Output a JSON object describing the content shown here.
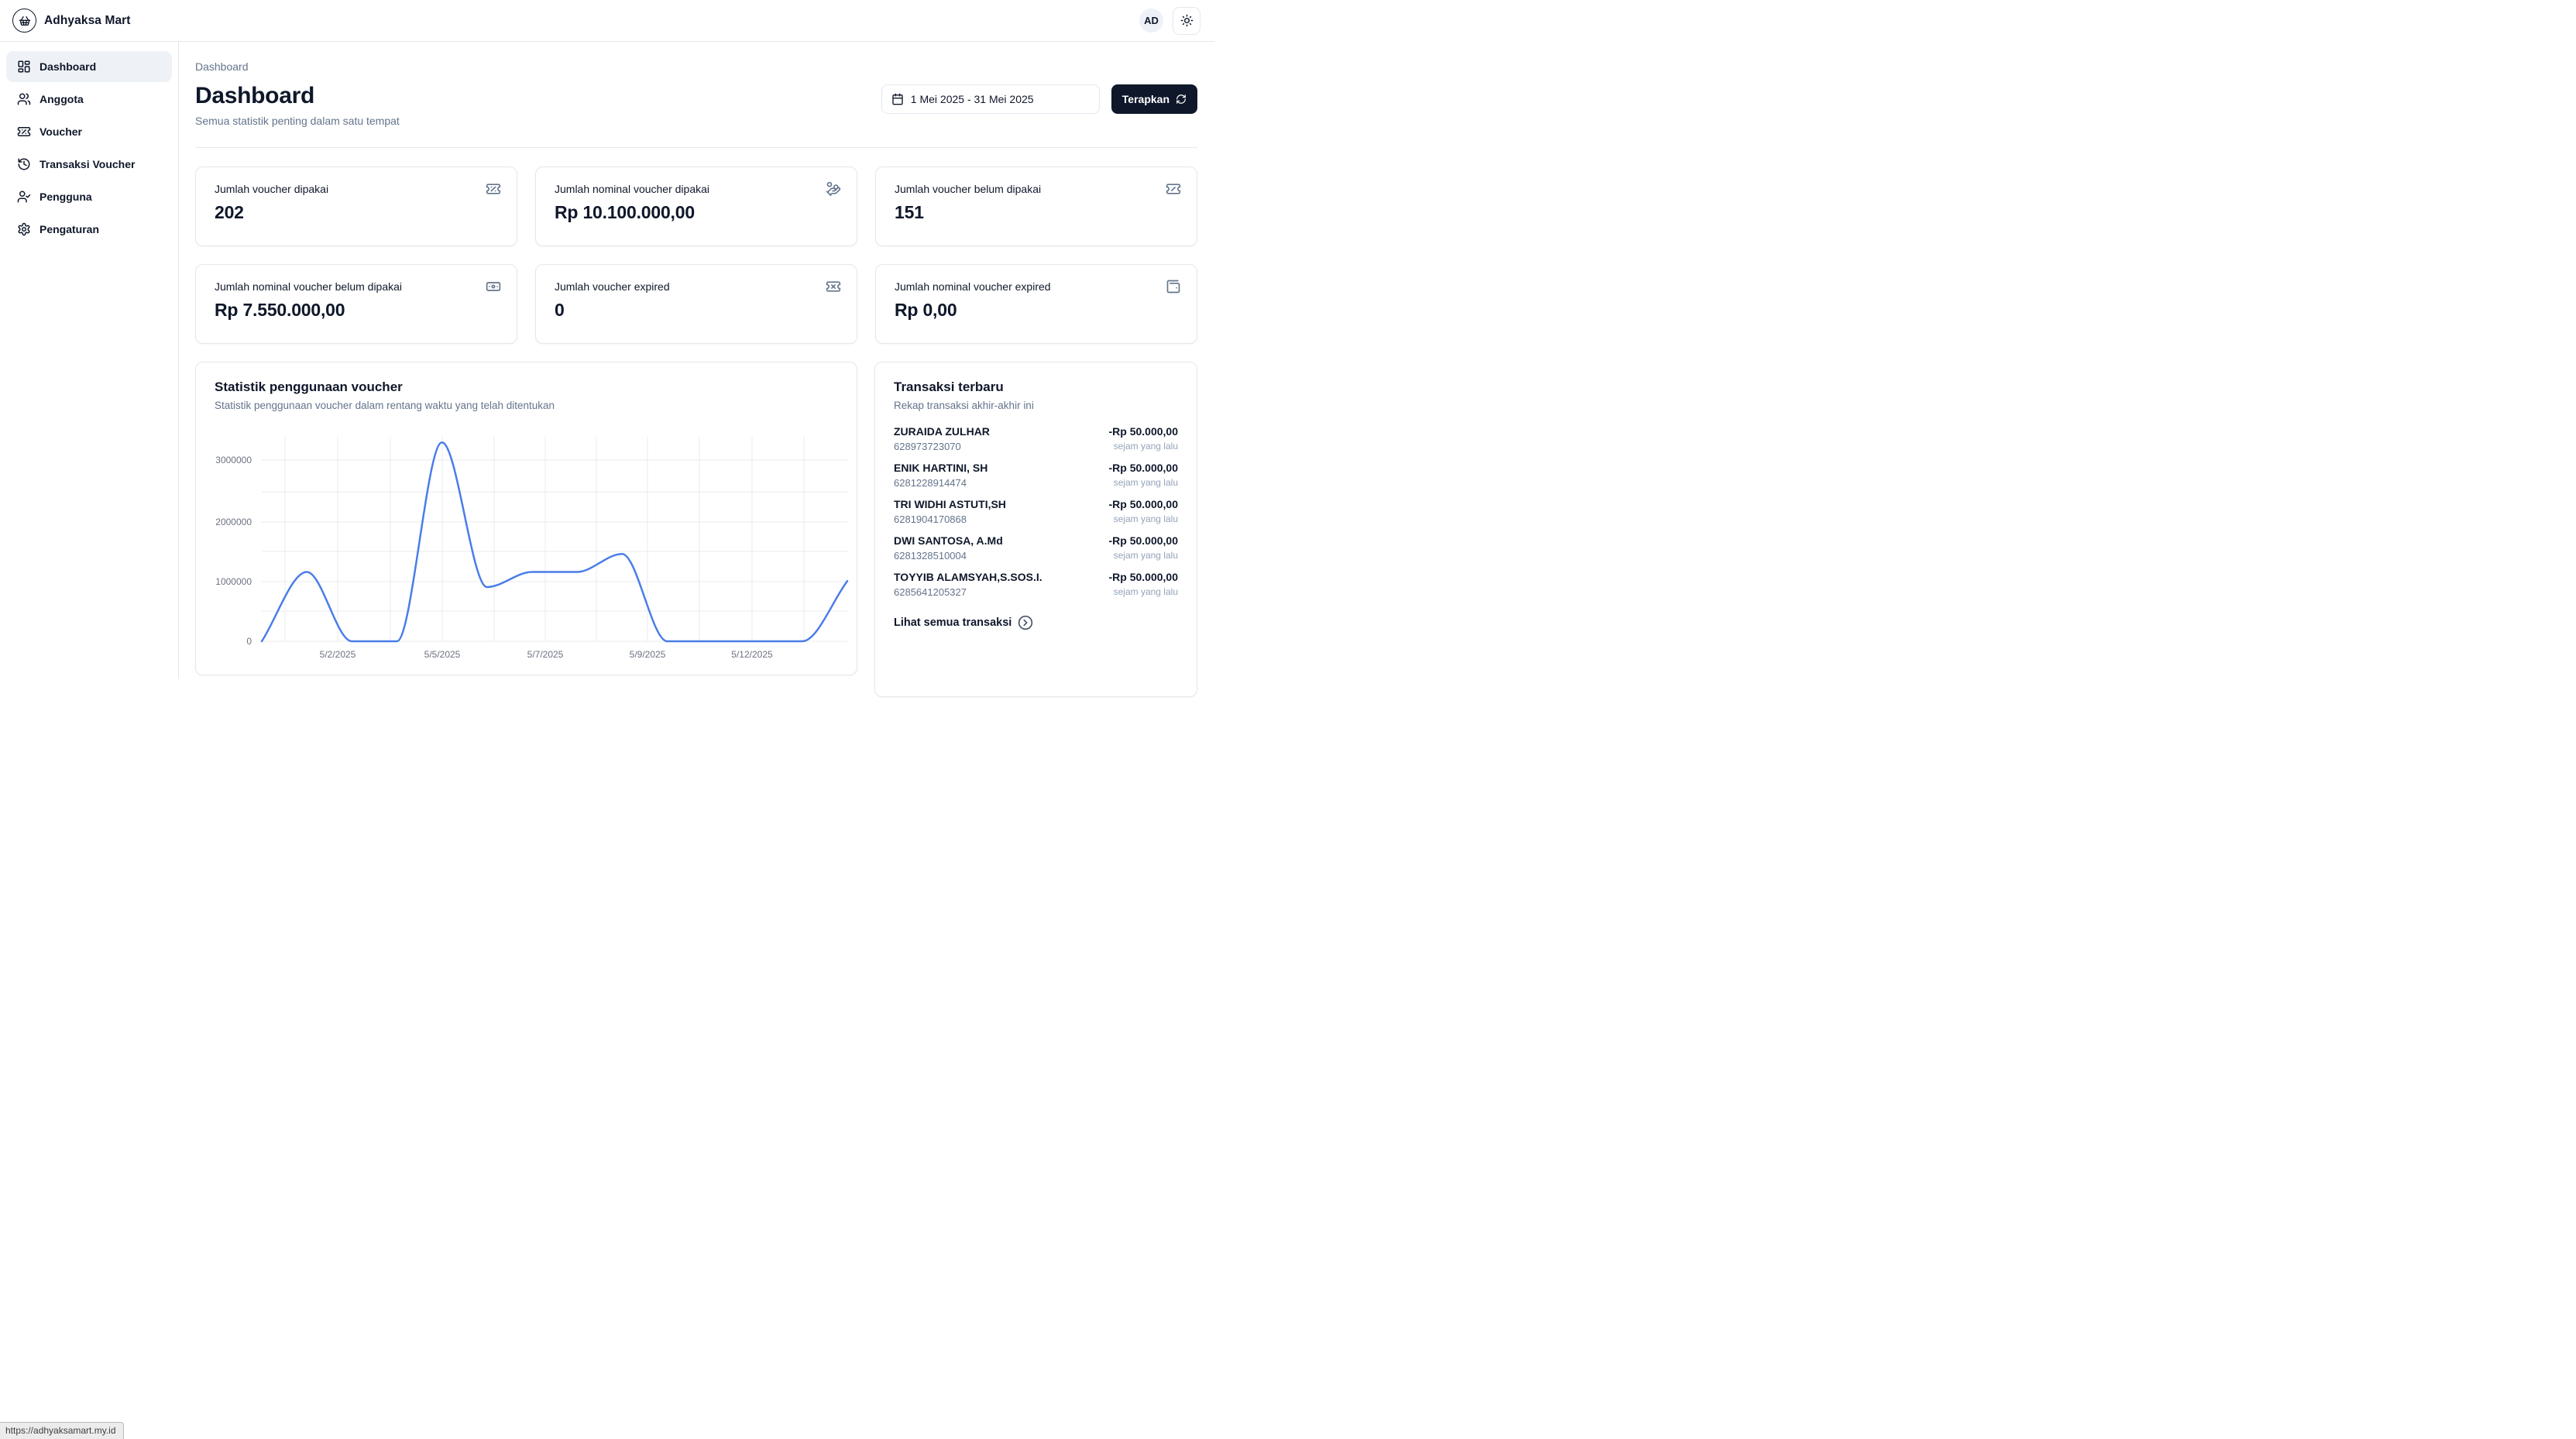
{
  "app": {
    "brand": "Adhyaksa Mart",
    "avatar_initials": "AD"
  },
  "sidebar": {
    "items": [
      {
        "label": "Dashboard",
        "icon": "layout-dashboard",
        "active": true
      },
      {
        "label": "Anggota",
        "icon": "users",
        "active": false
      },
      {
        "label": "Voucher",
        "icon": "ticket-percent",
        "active": false
      },
      {
        "label": "Transaksi Voucher",
        "icon": "history",
        "active": false
      },
      {
        "label": "Pengguna",
        "icon": "user-check",
        "active": false
      },
      {
        "label": "Pengaturan",
        "icon": "settings",
        "active": false
      }
    ]
  },
  "page": {
    "breadcrumb": "Dashboard",
    "title": "Dashboard",
    "subtitle": "Semua statistik penting dalam satu tempat"
  },
  "filters": {
    "date_range": "1 Mei 2025 - 31 Mei 2025",
    "apply_label": "Terapkan"
  },
  "stat_cards": [
    {
      "label": "Jumlah voucher dipakai",
      "value": "202",
      "icon": "ticket-percent"
    },
    {
      "label": "Jumlah nominal voucher dipakai",
      "value": "Rp 10.100.000,00",
      "icon": "hand-coins"
    },
    {
      "label": "Jumlah voucher belum dipakai",
      "value": "151",
      "icon": "ticket-slash"
    },
    {
      "label": "Jumlah nominal voucher belum dipakai",
      "value": "Rp 7.550.000,00",
      "icon": "banknote"
    },
    {
      "label": "Jumlah voucher expired",
      "value": "0",
      "icon": "ticket-x"
    },
    {
      "label": "Jumlah nominal voucher expired",
      "value": "Rp 0,00",
      "icon": "wallet"
    }
  ],
  "chart_card": {
    "title": "Statistik penggunaan voucher",
    "subtitle": "Statistik penggunaan voucher dalam rentang waktu yang telah ditentukan"
  },
  "chart_data": {
    "type": "line",
    "title": "Statistik penggunaan voucher",
    "x": [
      "5/1/2025",
      "5/2/2025",
      "5/3/2025",
      "5/4/2025",
      "5/5/2025",
      "5/6/2025",
      "5/7/2025",
      "5/8/2025",
      "5/9/2025",
      "5/10/2025",
      "5/11/2025",
      "5/12/2025",
      "5/13/2025",
      "5/14/2025"
    ],
    "values": [
      0,
      1150000,
      0,
      0,
      3300000,
      900000,
      1150000,
      1150000,
      1450000,
      0,
      0,
      0,
      0,
      1000000
    ],
    "x_tick_labels": [
      "5/2/2025",
      "5/5/2025",
      "5/7/2025",
      "5/9/2025",
      "5/12/2025"
    ],
    "y_tick_labels": [
      "3000000",
      "2000000",
      "1000000",
      "0"
    ],
    "y_ticks": [
      3000000,
      2000000,
      1000000,
      0
    ],
    "ylim": [
      0,
      3400000
    ],
    "grid": true,
    "legend": "none",
    "line_color": "#4a7de8"
  },
  "transactions": {
    "title": "Transaksi terbaru",
    "subtitle": "Rekap transaksi akhir-akhir ini",
    "items": [
      {
        "name": "ZURAIDA ZULHAR",
        "number": "628973723070",
        "amount": "-Rp 50.000,00",
        "time": "sejam yang lalu"
      },
      {
        "name": "ENIK HARTINI, SH",
        "number": "6281228914474",
        "amount": "-Rp 50.000,00",
        "time": "sejam yang lalu"
      },
      {
        "name": "TRI WIDHI ASTUTI,SH",
        "number": "6281904170868",
        "amount": "-Rp 50.000,00",
        "time": "sejam yang lalu"
      },
      {
        "name": "DWI SANTOSA, A.Md",
        "number": "6281328510004",
        "amount": "-Rp 50.000,00",
        "time": "sejam yang lalu"
      },
      {
        "name": "TOYYIB ALAMSYAH,S.SOS.I.",
        "number": "6285641205327",
        "amount": "-Rp 50.000,00",
        "time": "sejam yang lalu"
      }
    ],
    "view_all_label": "Lihat semua transaksi"
  },
  "status_bar": {
    "url": "https://adhyaksamart.my.id"
  },
  "colors": {
    "accent_dark": "#0f172a",
    "chart_line": "#4a7de8",
    "active_nav_bg": "#eef2f7",
    "muted_text": "#64748b"
  }
}
